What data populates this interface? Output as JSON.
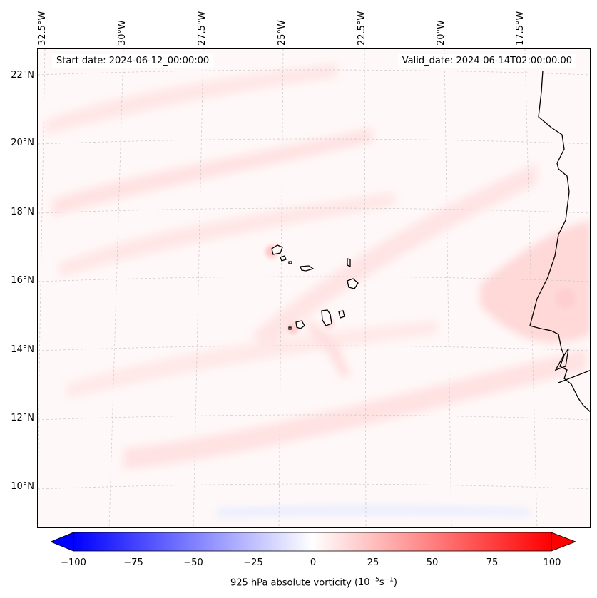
{
  "map": {
    "start_date": "Start date: 2024-06-12_00:00:00",
    "valid_date": "Valid_date: 2024-06-14T02:00:00.00",
    "lat_labels": [
      "22°N",
      "20°N",
      "18°N",
      "16°N",
      "14°N",
      "12°N",
      "10°N"
    ],
    "lon_labels": [
      "32.5°W",
      "30°W",
      "27.5°W",
      "25°W",
      "22.5°W",
      "20°W",
      "17.5°W"
    ],
    "variable": "925 hPa absolute vorticity",
    "units_base": "(10",
    "units_exp1": "−5",
    "units_mid": "s",
    "units_exp2": "−1",
    "units_end": ")"
  },
  "colorbar": {
    "min": -100,
    "max": 100,
    "ticks": [
      "−100",
      "−75",
      "−50",
      "−25",
      "0",
      "25",
      "50",
      "75",
      "100"
    ],
    "low_color": "#0000ff",
    "mid_color": "#ffffff",
    "high_color": "#ff0000",
    "extend": "both"
  },
  "colors": {
    "coastline": "#000000",
    "gridline": "#c8c8c8",
    "background_tint": "#fff8f8"
  }
}
